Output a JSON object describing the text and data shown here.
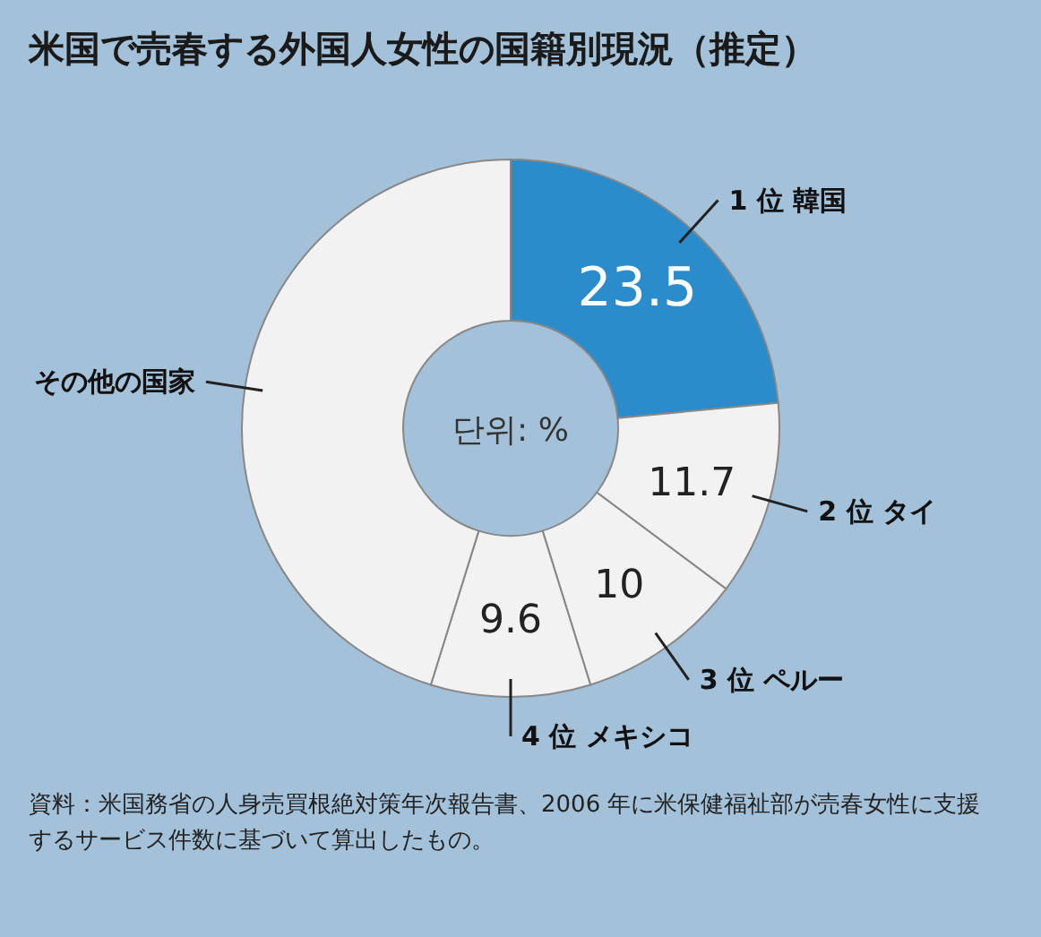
{
  "chart_data": {
    "type": "donut",
    "title": "米国で売春する外国人女性の国籍別現況（推定）",
    "categories": [
      "1 位 韓国",
      "2 位 タイ",
      "3 位 ペルー",
      "4 位 メキシコ",
      "その他の国家"
    ],
    "values": [
      23.5,
      11.7,
      10,
      9.6,
      45.2
    ],
    "value_labels": [
      "23.5",
      "11.7",
      "10",
      "9.6",
      null
    ],
    "colors": [
      "#2b8ccc",
      "#f2f2f2",
      "#f2f2f2",
      "#f2f2f2",
      "#f2f2f2"
    ],
    "annotations": [
      "단위: %",
      "資料：米国務省の人身売買根絶対策年次報告書、2006 年に米保健福祉部が売春女性に支援するサービス件数に基づいて算出したもの。"
    ]
  }
}
